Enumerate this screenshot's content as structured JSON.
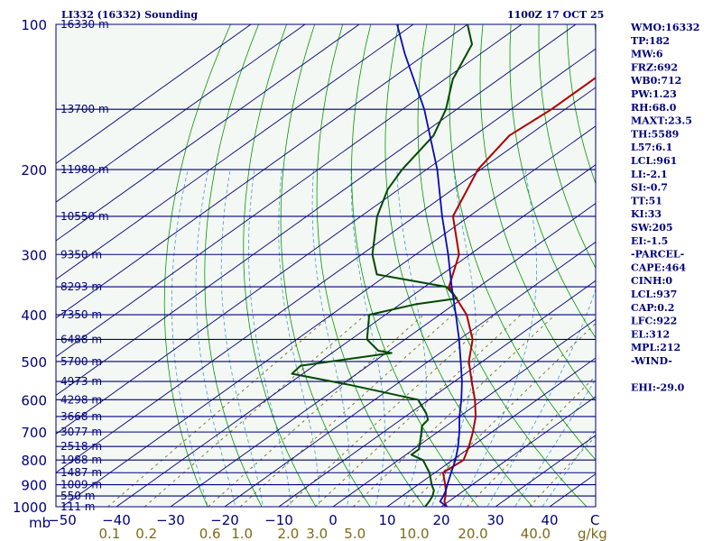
{
  "chart_data": {
    "type": "skew-t",
    "title": "LI332 (16332) Sounding",
    "time_label": "1100Z 17 OCT 25",
    "pressure_label": "mb",
    "mixing_ratio_unit": "g/kg",
    "temperature_unit": "C",
    "pressure_levels": [
      100,
      200,
      300,
      400,
      500,
      600,
      700,
      800,
      900,
      1000
    ],
    "temperature_ticks": [
      -50,
      -40,
      -30,
      -20,
      -10,
      0,
      10,
      20,
      30,
      40
    ],
    "mixing_ratio_ticks": [
      "0.1",
      "0.2",
      "0.6",
      "1.0",
      "2.0",
      "3.0",
      "5.0",
      "10.0",
      "20.0",
      "40.0"
    ],
    "height_levels": [
      {
        "p": 100,
        "label": "16330 m"
      },
      {
        "p": 150,
        "label": "13700 m"
      },
      {
        "p": 200,
        "label": "11980 m"
      },
      {
        "p": 250,
        "label": "10550 m"
      },
      {
        "p": 300,
        "label": "9350 m"
      },
      {
        "p": 350,
        "label": "8293 m"
      },
      {
        "p": 400,
        "label": "7350 m"
      },
      {
        "p": 450,
        "label": "6488 m"
      },
      {
        "p": 500,
        "label": "5700 m"
      },
      {
        "p": 550,
        "label": "4973 m"
      },
      {
        "p": 600,
        "label": "4298 m"
      },
      {
        "p": 650,
        "label": "3668 m"
      },
      {
        "p": 700,
        "label": "3077 m"
      },
      {
        "p": 750,
        "label": "2518 m"
      },
      {
        "p": 800,
        "label": "1988 m"
      },
      {
        "p": 850,
        "label": "1487 m"
      },
      {
        "p": 900,
        "label": "1009 m"
      },
      {
        "p": 950,
        "label": "550 m"
      },
      {
        "p": 1000,
        "label": "111 m"
      }
    ],
    "series": [
      {
        "name": "temperature",
        "color": "#b00000",
        "points": [
          [
            1000,
            21.0
          ],
          [
            975,
            19.2
          ],
          [
            950,
            18.0
          ],
          [
            925,
            16.6
          ],
          [
            900,
            15.0
          ],
          [
            850,
            11.5
          ],
          [
            800,
            12.0
          ],
          [
            750,
            9.5
          ],
          [
            700,
            6.5
          ],
          [
            650,
            3.0
          ],
          [
            600,
            -1.5
          ],
          [
            550,
            -6.8
          ],
          [
            500,
            -12.5
          ],
          [
            450,
            -17.5
          ],
          [
            400,
            -25.0
          ],
          [
            350,
            -35.5
          ],
          [
            300,
            -42.0
          ],
          [
            250,
            -53.0
          ],
          [
            200,
            -60.5
          ],
          [
            170,
            -63.5
          ],
          [
            150,
            -62.5
          ],
          [
            125,
            -62.5
          ],
          [
            100,
            -67.0
          ]
        ]
      },
      {
        "name": "dewpoint",
        "color": "#004a00",
        "points": [
          [
            1000,
            17.0
          ],
          [
            975,
            16.4
          ],
          [
            950,
            15.6
          ],
          [
            925,
            14.4
          ],
          [
            900,
            12.5
          ],
          [
            850,
            9.0
          ],
          [
            800,
            4.5
          ],
          [
            780,
            1.0
          ],
          [
            760,
            1.0
          ],
          [
            700,
            -3.0
          ],
          [
            680,
            -4.5
          ],
          [
            660,
            -5.0
          ],
          [
            640,
            -7.0
          ],
          [
            600,
            -12.0
          ],
          [
            560,
            -28.0
          ],
          [
            530,
            -42.0
          ],
          [
            510,
            -42.5
          ],
          [
            480,
            -29.0
          ],
          [
            475,
            -32.0
          ],
          [
            450,
            -37.0
          ],
          [
            400,
            -43.0
          ],
          [
            380,
            -37.0
          ],
          [
            370,
            -31.0
          ],
          [
            350,
            -36.0
          ],
          [
            330,
            -52.0
          ],
          [
            300,
            -58.0
          ],
          [
            250,
            -67.0
          ],
          [
            220,
            -72.0
          ],
          [
            200,
            -74.5
          ],
          [
            170,
            -77.5
          ],
          [
            150,
            -82.0
          ],
          [
            130,
            -88.5
          ],
          [
            110,
            -94.0
          ],
          [
            100,
            -100.0
          ]
        ]
      },
      {
        "name": "parcel",
        "color": "#0a0ab4",
        "points": [
          [
            1000,
            21.0
          ],
          [
            975,
            18.4
          ],
          [
            950,
            17.6
          ],
          [
            925,
            16.6
          ],
          [
            900,
            15.4
          ],
          [
            850,
            13.0
          ],
          [
            800,
            10.5
          ],
          [
            750,
            7.5
          ],
          [
            700,
            4.0
          ],
          [
            650,
            0.0
          ],
          [
            600,
            -4.0
          ],
          [
            550,
            -8.6
          ],
          [
            500,
            -14.0
          ],
          [
            450,
            -20.0
          ],
          [
            400,
            -27.0
          ],
          [
            350,
            -35.0
          ],
          [
            300,
            -44.0
          ],
          [
            250,
            -55.0
          ],
          [
            200,
            -68.0
          ],
          [
            150,
            -86.0
          ],
          [
            115,
            -104.0
          ],
          [
            100,
            -113.0
          ]
        ]
      }
    ]
  },
  "indices": [
    "WMO:16332",
    "TP:182",
    "MW:6",
    "FRZ:692",
    "WB0:712",
    "PW:1.23",
    "RH:68.0",
    "MAXT:23.5",
    "TH:5589",
    "L57:6.1",
    "LCL:961",
    "LI:-2.1",
    "SI:-0.7",
    "TT:51",
    "KI:33",
    "SW:205",
    "EI:-1.5",
    "-PARCEL-",
    "CAPE:464",
    "CINH:0",
    "LCL:937",
    "CAP:0.2",
    "LFC:922",
    "EL:312",
    "MPL:212",
    "-WIND-",
    "",
    "EHI:-29.0"
  ],
  "colors": {
    "isobar": "#00007a",
    "isotherm": "#00007a",
    "dry_adiabat": "#009900",
    "moist_adiabat": "#4499cc",
    "mixing_ratio": "#7a6a1a"
  }
}
